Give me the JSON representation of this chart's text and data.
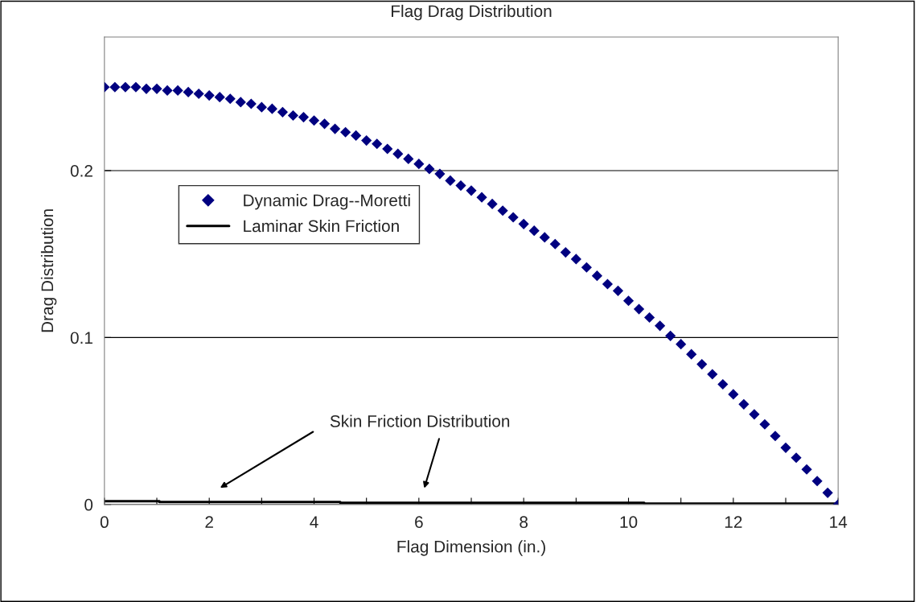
{
  "chart_data": {
    "type": "scatter",
    "title": "Flag Drag Distribution",
    "xlabel": "Flag Dimension (in.)",
    "ylabel": "Drag Distribution",
    "xlim": [
      0,
      14
    ],
    "xticks": [
      0,
      {
        "value": 1,
        "label": null
      },
      2,
      {
        "value": 3,
        "label": null
      },
      4,
      {
        "value": 5,
        "label": null
      },
      6,
      {
        "value": 7,
        "label": null
      },
      8,
      {
        "value": 9,
        "label": null
      },
      10,
      {
        "value": 11,
        "label": null
      },
      12,
      {
        "value": 13,
        "label": null
      },
      14
    ],
    "ylim": [
      0,
      0.28
    ],
    "yticks": [
      0,
      0.1,
      0.2
    ],
    "grid": "y",
    "legend": "left",
    "series": [
      {
        "name": "Dynamic Drag--Moretti",
        "marker": "diamond",
        "color": "#000080",
        "x": [
          0,
          0.2,
          0.4,
          0.6,
          0.8,
          1.0,
          1.2,
          1.4,
          1.6,
          1.8,
          2.0,
          2.2,
          2.4,
          2.6,
          2.8,
          3.0,
          3.2,
          3.4,
          3.6,
          3.8,
          4.0,
          4.2,
          4.4,
          4.6,
          4.8,
          5.0,
          5.2,
          5.4,
          5.6,
          5.8,
          6.0,
          6.2,
          6.4,
          6.6,
          6.8,
          7.0,
          7.2,
          7.4,
          7.6,
          7.8,
          8.0,
          8.2,
          8.4,
          8.6,
          8.8,
          9.0,
          9.2,
          9.4,
          9.6,
          9.8,
          10.0,
          10.2,
          10.4,
          10.6,
          10.8,
          11.0,
          11.2,
          11.4,
          11.6,
          11.8,
          12.0,
          12.2,
          12.4,
          12.6,
          12.8,
          13.0,
          13.2,
          13.4,
          13.6,
          13.8,
          14.0
        ],
        "values": [
          0.25,
          0.25,
          0.25,
          0.25,
          0.249,
          0.249,
          0.248,
          0.248,
          0.247,
          0.246,
          0.245,
          0.244,
          0.243,
          0.241,
          0.24,
          0.238,
          0.237,
          0.235,
          0.233,
          0.232,
          0.23,
          0.228,
          0.225,
          0.223,
          0.221,
          0.218,
          0.216,
          0.213,
          0.21,
          0.207,
          0.204,
          0.201,
          0.198,
          0.194,
          0.191,
          0.188,
          0.184,
          0.18,
          0.176,
          0.172,
          0.168,
          0.164,
          0.16,
          0.156,
          0.151,
          0.147,
          0.142,
          0.137,
          0.132,
          0.128,
          0.122,
          0.117,
          0.112,
          0.107,
          0.101,
          0.096,
          0.09,
          0.084,
          0.078,
          0.072,
          0.066,
          0.06,
          0.054,
          0.048,
          0.041,
          0.034,
          0.028,
          0.021,
          0.014,
          0.007,
          0.0
        ]
      },
      {
        "name": "Laminar Skin Friction",
        "type": "step",
        "line_style": "solid",
        "color": "#000000",
        "x": [
          0,
          1.05,
          4.5,
          10.3,
          14
        ],
        "values": [
          0.002,
          0.0015,
          0.001,
          0.0005,
          0.0005
        ]
      }
    ],
    "annotations": [
      "Skin Friction Distribution"
    ]
  }
}
